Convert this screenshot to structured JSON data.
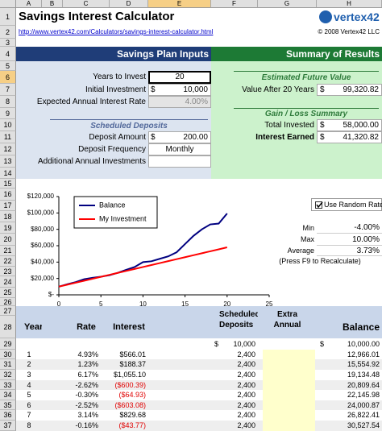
{
  "columns": [
    "A",
    "B",
    "C",
    "D",
    "E",
    "F",
    "G",
    "H"
  ],
  "rows": [
    "1",
    "2",
    "3",
    "4",
    "5",
    "6",
    "7",
    "8",
    "9",
    "10",
    "11",
    "12",
    "13",
    "14",
    "15",
    "16",
    "17",
    "18",
    "19",
    "20",
    "21",
    "22",
    "23",
    "24",
    "25",
    "26",
    "27",
    "28",
    "29",
    "30",
    "31",
    "32",
    "33",
    "34",
    "35",
    "36",
    "37"
  ],
  "title": "Savings Interest Calculator",
  "link": "http://www.vertex42.com/Calculators/savings-interest-calculator.html",
  "copyright": "© 2008 Vertex42 LLC",
  "logo": "vertex42",
  "inputs": {
    "header": "Savings Plan Inputs",
    "fields": [
      {
        "label": "Years to Invest",
        "value": "20"
      },
      {
        "label": "Initial Investment",
        "currency": "$",
        "value": "10,000"
      },
      {
        "label": "Expected Annual Interest Rate",
        "value": "4.00%"
      }
    ],
    "deposits_header": "Scheduled Deposits",
    "deposits": [
      {
        "label": "Deposit Amount",
        "currency": "$",
        "value": "200.00"
      },
      {
        "label": "Deposit Frequency",
        "value": "Monthly"
      },
      {
        "label": "Additional Annual Investments"
      }
    ]
  },
  "results": {
    "header": "Summary of Results",
    "future_header": "Estimated Future Value",
    "future": [
      {
        "label": "Value After 20 Years",
        "currency": "$",
        "value": "99,320.82"
      }
    ],
    "gain_header": "Gain / Loss Summary",
    "gain": [
      {
        "label": "Total Invested",
        "currency": "$",
        "value": "58,000.00"
      },
      {
        "label": "Interest Earned",
        "currency": "$",
        "value": "41,320.82"
      }
    ]
  },
  "random": {
    "checkbox": "Use Random Rate",
    "fields": [
      {
        "label": "Min",
        "value": "-4.00%"
      },
      {
        "label": "Max",
        "value": "10.00%"
      },
      {
        "label": "Average",
        "value": "3.73%"
      }
    ],
    "note": "(Press F9 to Recalculate)"
  },
  "table": {
    "headers": [
      "Year",
      "Rate",
      "Interest",
      "Scheduled Deposits",
      "Extra Annual",
      "Balance"
    ],
    "initial": {
      "deposit_currency": "$",
      "deposit": "10,000",
      "balance_currency": "$",
      "balance": "10,000.00"
    },
    "rows": [
      [
        "1",
        "4.93%",
        "$566.01",
        "2,400",
        "12,966.01"
      ],
      [
        "2",
        "1.23%",
        "$188.37",
        "2,400",
        "15,554.92"
      ],
      [
        "3",
        "6.17%",
        "$1,055.10",
        "2,400",
        "19,134.48"
      ],
      [
        "4",
        "-2.62%",
        "($600.39)",
        "2,400",
        "20,809.64"
      ],
      [
        "5",
        "-0.30%",
        "($64.93)",
        "2,400",
        "22,145.98"
      ],
      [
        "6",
        "-2.52%",
        "($603.08)",
        "2,400",
        "24,000.87"
      ],
      [
        "7",
        "3.14%",
        "$829.68",
        "2,400",
        "26,822.41"
      ],
      [
        "8",
        "-0.16%",
        "($43.77)",
        "2,400",
        "30,527.54"
      ]
    ]
  },
  "chart_data": {
    "type": "line",
    "legend": "upper left",
    "x": [
      0,
      1,
      2,
      3,
      4,
      5,
      6,
      7,
      8,
      9,
      10,
      11,
      12,
      13,
      14,
      15,
      16,
      17,
      18,
      19,
      20
    ],
    "series": [
      {
        "name": "Balance",
        "color": "#000080",
        "values": [
          10000,
          12966,
          15555,
          19134,
          20810,
          22146,
          24001,
          26822,
          30528,
          34000,
          40000,
          41000,
          44000,
          47000,
          52000,
          62000,
          72000,
          80000,
          86000,
          87000,
          99321
        ]
      },
      {
        "name": "My Investment",
        "color": "#ff0000",
        "values": [
          10000,
          12400,
          14800,
          17200,
          19600,
          22000,
          24400,
          26800,
          29200,
          31600,
          34000,
          36400,
          38800,
          41200,
          43600,
          46000,
          48400,
          50800,
          53200,
          55600,
          58000
        ]
      }
    ],
    "xlim": [
      0,
      25
    ],
    "xticks": [
      0,
      5,
      10,
      15,
      20,
      25
    ],
    "ylim": [
      0,
      120000
    ],
    "yticks": [
      {
        "value": 0,
        "label": "$-"
      },
      {
        "value": 20000,
        "label": "$20,000"
      },
      {
        "value": 40000,
        "label": "$40,000"
      },
      {
        "value": 60000,
        "label": "$60,000"
      },
      {
        "value": 80000,
        "label": "$80,000"
      },
      {
        "value": 100000,
        "label": "$100,000"
      },
      {
        "value": 120000,
        "label": "$120,000"
      }
    ]
  }
}
